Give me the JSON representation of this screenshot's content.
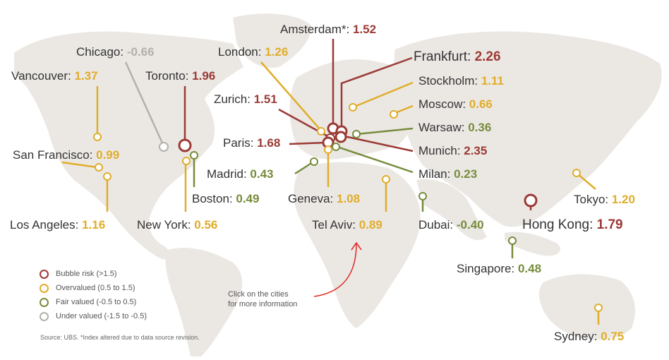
{
  "colors": {
    "bubble": "#9b3a35",
    "over": "#e0ad2b",
    "fair": "#778c3b",
    "under": "#b4b0aa",
    "land": "#ebe8e4"
  },
  "cities": [
    {
      "id": "amsterdam",
      "name": "Amsterdam*:",
      "value": "1.52",
      "cat": "bubble"
    },
    {
      "id": "chicago",
      "name": "Chicago:",
      "value": "-0.66",
      "cat": "under"
    },
    {
      "id": "london",
      "name": "London:",
      "value": "1.26",
      "cat": "over"
    },
    {
      "id": "frankfurt",
      "name": "Frankfurt:",
      "value": "2.26",
      "cat": "bubble"
    },
    {
      "id": "vancouver",
      "name": "Vancouver:",
      "value": "1.37",
      "cat": "over"
    },
    {
      "id": "toronto",
      "name": "Toronto:",
      "value": "1.96",
      "cat": "bubble"
    },
    {
      "id": "stockholm",
      "name": "Stockholm:",
      "value": "1.11",
      "cat": "over"
    },
    {
      "id": "zurich",
      "name": "Zurich:",
      "value": "1.51",
      "cat": "bubble"
    },
    {
      "id": "moscow",
      "name": "Moscow:",
      "value": "0.66",
      "cat": "over"
    },
    {
      "id": "warsaw",
      "name": "Warsaw:",
      "value": "0.36",
      "cat": "fair"
    },
    {
      "id": "paris",
      "name": "Paris:",
      "value": "1.68",
      "cat": "bubble"
    },
    {
      "id": "munich",
      "name": "Munich:",
      "value": "2.35",
      "cat": "bubble"
    },
    {
      "id": "sanfrancisco",
      "name": "San Francisco:",
      "value": "0.99",
      "cat": "over"
    },
    {
      "id": "madrid",
      "name": "Madrid:",
      "value": "0.43",
      "cat": "fair"
    },
    {
      "id": "milan",
      "name": "Milan:",
      "value": "0.23",
      "cat": "fair"
    },
    {
      "id": "boston",
      "name": "Boston:",
      "value": "0.49",
      "cat": "fair"
    },
    {
      "id": "geneva",
      "name": "Geneva:",
      "value": "1.08",
      "cat": "over"
    },
    {
      "id": "tokyo",
      "name": "Tokyo:",
      "value": "1.20",
      "cat": "over"
    },
    {
      "id": "losangeles",
      "name": "Los Angeles:",
      "value": "1.16",
      "cat": "over"
    },
    {
      "id": "newyork",
      "name": "New York:",
      "value": "0.56",
      "cat": "over"
    },
    {
      "id": "telaviv",
      "name": "Tel Aviv:",
      "value": "0.89",
      "cat": "over"
    },
    {
      "id": "dubai",
      "name": "Dubai:",
      "value": "-0.40",
      "cat": "fair"
    },
    {
      "id": "hongkong",
      "name": "Hong Kong:",
      "value": "1.79",
      "cat": "bubble"
    },
    {
      "id": "singapore",
      "name": "Singapore:",
      "value": "0.48",
      "cat": "fair"
    },
    {
      "id": "sydney",
      "name": "Sydney:",
      "value": "0.75",
      "cat": "over"
    }
  ],
  "legend": [
    {
      "label": "Bubble risk (>1.5)",
      "cat": "bubble"
    },
    {
      "label": "Overvalued (0.5 to 1.5)",
      "cat": "over"
    },
    {
      "label": "Fair valued (-0.5 to 0.5)",
      "cat": "fair"
    },
    {
      "label": "Under valued (-1.5 to -0.5)",
      "cat": "under"
    }
  ],
  "hint": {
    "line1": "Click on the cities",
    "line2": "for more information"
  },
  "source": "Source: UBS. *Index altered due to data source revision."
}
